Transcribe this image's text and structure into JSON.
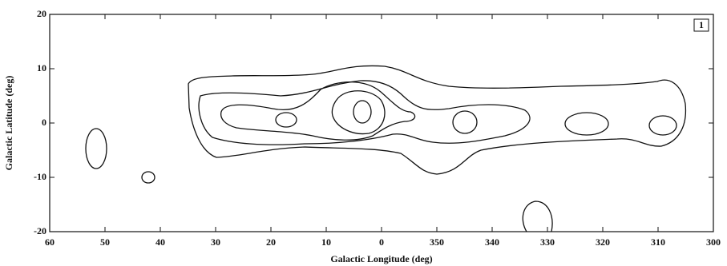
{
  "chart_data": {
    "type": "contour",
    "xlabel": "Galactic Longitude (deg)",
    "ylabel": "Galactic Latitude (deg)",
    "annotation": "1",
    "xlim": [
      60,
      -60
    ],
    "xticks": [
      60,
      50,
      40,
      30,
      20,
      10,
      0,
      {
        "value": -10,
        "label": "350"
      },
      {
        "value": -20,
        "label": "340"
      },
      {
        "value": -30,
        "label": "330"
      },
      {
        "value": -40,
        "label": "320"
      },
      {
        "value": -50,
        "label": "310"
      },
      {
        "value": -60,
        "label": "300"
      }
    ],
    "ylim": [
      -20,
      20
    ],
    "yticks": [
      -20,
      -10,
      0,
      10,
      20
    ],
    "grid": false
  }
}
